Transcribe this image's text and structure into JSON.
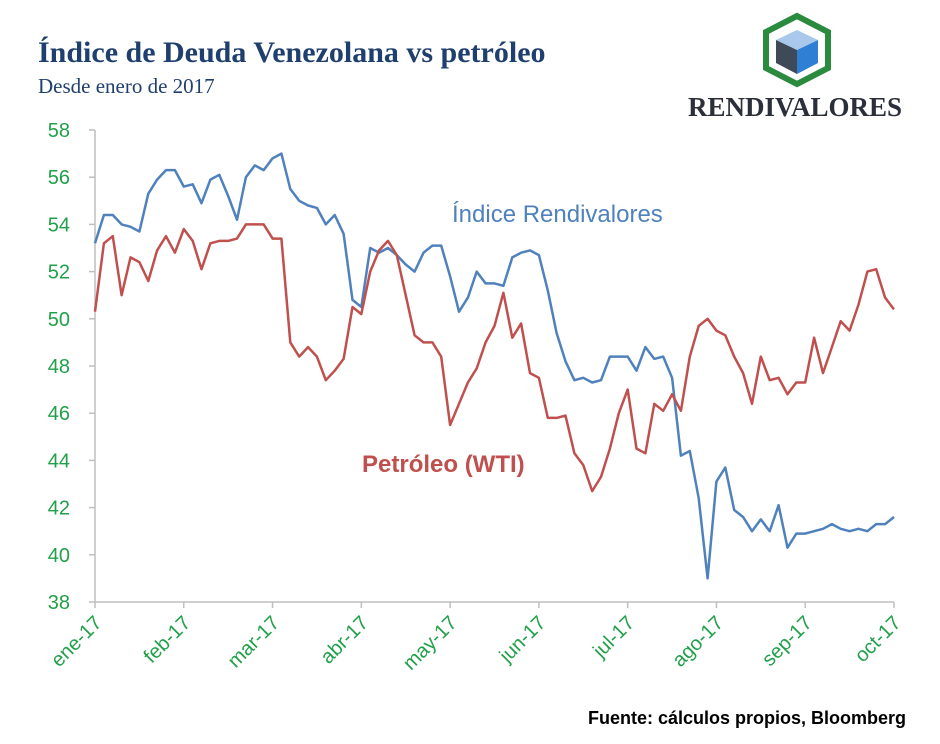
{
  "chart_data": {
    "type": "line",
    "title": "Índice de Deuda Venezolana vs petróleo",
    "subtitle": "Desde enero de 2017",
    "logo_text": "RENDIVALORES",
    "source": "Fuente: cálculos propios, Bloomberg",
    "annotations": [
      {
        "text": "Índice Rendivalores",
        "color": "#4f81bd"
      },
      {
        "text": "Petróleo (WTI)",
        "color": "#c0504d"
      }
    ],
    "x": [
      0,
      0.1,
      0.2,
      0.3,
      0.4,
      0.5,
      0.6,
      0.7,
      0.8,
      0.9,
      1,
      1.1,
      1.2,
      1.3,
      1.4,
      1.5,
      1.6,
      1.7,
      1.8,
      1.9,
      2,
      2.1,
      2.2,
      2.3,
      2.4,
      2.5,
      2.6,
      2.7,
      2.8,
      2.9,
      3,
      3.1,
      3.2,
      3.3,
      3.4,
      3.5,
      3.6,
      3.7,
      3.8,
      3.9,
      4,
      4.1,
      4.2,
      4.3,
      4.4,
      4.5,
      4.6,
      4.7,
      4.8,
      4.9,
      5,
      5.1,
      5.2,
      5.3,
      5.4,
      5.5,
      5.6,
      5.7,
      5.8,
      5.9,
      6,
      6.1,
      6.2,
      6.3,
      6.4,
      6.5,
      6.6,
      6.7,
      6.8,
      6.9,
      7,
      7.1,
      7.2,
      7.3,
      7.4,
      7.5,
      7.6,
      7.7,
      7.8,
      7.9,
      8,
      8.1,
      8.2,
      8.3,
      8.4,
      8.5,
      8.6,
      8.7,
      8.8,
      8.9,
      9
    ],
    "series": [
      {
        "name": "Índice Rendivalores",
        "color": "#4f81bd",
        "values": [
          53.2,
          54.4,
          54.4,
          54.0,
          53.9,
          53.7,
          55.3,
          55.9,
          56.3,
          56.3,
          55.6,
          55.7,
          54.9,
          55.9,
          56.1,
          55.2,
          54.2,
          56.0,
          56.5,
          56.3,
          56.8,
          57.0,
          55.5,
          55.0,
          54.8,
          54.7,
          54.0,
          54.4,
          53.6,
          50.8,
          50.5,
          53.0,
          52.8,
          53.0,
          52.7,
          52.3,
          52.0,
          52.8,
          53.1,
          53.1,
          51.8,
          50.3,
          50.9,
          52.0,
          51.5,
          51.5,
          51.4,
          52.6,
          52.8,
          52.9,
          52.7,
          51.2,
          49.4,
          48.2,
          47.4,
          47.5,
          47.3,
          47.4,
          48.4,
          48.4,
          48.4,
          47.8,
          48.8,
          48.3,
          48.4,
          47.5,
          44.2,
          44.4,
          42.4,
          39.0,
          43.1,
          43.7,
          41.9,
          41.6,
          41.0,
          41.5,
          41.0,
          42.1,
          40.3,
          40.9,
          40.9,
          41.0,
          41.1,
          41.3,
          41.1,
          41.0,
          41.1,
          41.0,
          41.3,
          41.3,
          41.6
        ]
      },
      {
        "name": "Petróleo (WTI)",
        "color": "#c0504d",
        "values": [
          50.3,
          53.2,
          53.5,
          51.0,
          52.6,
          52.4,
          51.6,
          52.9,
          53.5,
          52.8,
          53.8,
          53.3,
          52.1,
          53.2,
          53.3,
          53.3,
          53.4,
          54.0,
          54.0,
          54.0,
          53.4,
          53.4,
          49.0,
          48.4,
          48.8,
          48.4,
          47.4,
          47.8,
          48.3,
          50.5,
          50.2,
          52.0,
          52.9,
          53.3,
          52.7,
          51.0,
          49.3,
          49.0,
          49.0,
          48.4,
          45.5,
          46.4,
          47.3,
          47.9,
          49.0,
          49.7,
          51.1,
          49.2,
          49.8,
          47.7,
          47.5,
          45.8,
          45.8,
          45.9,
          44.3,
          43.8,
          42.7,
          43.3,
          44.5,
          46.0,
          47.0,
          44.5,
          44.3,
          46.4,
          46.1,
          46.8,
          46.1,
          48.4,
          49.7,
          50.0,
          49.5,
          49.3,
          48.4,
          47.7,
          46.4,
          48.4,
          47.4,
          47.5,
          46.8,
          47.3,
          47.3,
          49.2,
          47.7,
          48.8,
          49.9,
          49.5,
          50.6,
          52.0,
          52.1,
          50.9,
          50.4
        ]
      }
    ],
    "xlim": [
      0,
      9
    ],
    "xticks": [
      {
        "value": 0,
        "label": "ene-17"
      },
      {
        "value": 1,
        "label": "feb-17"
      },
      {
        "value": 2,
        "label": "mar-17"
      },
      {
        "value": 3,
        "label": "abr-17"
      },
      {
        "value": 4,
        "label": "may-17"
      },
      {
        "value": 5,
        "label": "jun-17"
      },
      {
        "value": 6,
        "label": "jul-17"
      },
      {
        "value": 7,
        "label": "ago-17"
      },
      {
        "value": 8,
        "label": "sep-17"
      },
      {
        "value": 9,
        "label": "oct-17"
      }
    ],
    "ylim": [
      38,
      58
    ],
    "yticks": [
      38,
      40,
      42,
      44,
      46,
      48,
      50,
      52,
      54,
      56,
      58
    ],
    "tick_color": "#21a04a",
    "grid": false
  }
}
